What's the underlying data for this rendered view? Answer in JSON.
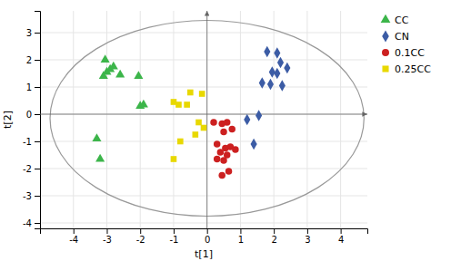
{
  "chart_data": {
    "type": "scatter",
    "title": "",
    "xlabel": "t[1]",
    "ylabel": "t[2]",
    "xlim": [
      -5,
      4.8
    ],
    "ylim": [
      -4.2,
      3.8
    ],
    "xticks": [
      -4,
      -3,
      -2,
      -1,
      0,
      1,
      2,
      3,
      4
    ],
    "yticks": [
      -4,
      -3,
      -2,
      -1,
      0,
      1,
      2,
      3
    ],
    "grid": true,
    "legend": "right",
    "ellipse": {
      "center": [
        0.0,
        -0.15
      ],
      "width": 9.4,
      "height": 7.2
    },
    "series": [
      {
        "name": "CC",
        "color": "#3cb54a",
        "marker": "triangle",
        "x": [
          -3.0,
          -2.9,
          -3.05,
          -2.8,
          -3.1,
          -2.6,
          -2.05,
          -2.0,
          -1.9,
          -3.3,
          -3.2
        ],
        "y": [
          1.55,
          1.65,
          2.0,
          1.75,
          1.4,
          1.45,
          1.4,
          0.3,
          0.35,
          -0.9,
          -1.65
        ]
      },
      {
        "name": "CN",
        "color": "#3c5ca5",
        "marker": "diamond",
        "x": [
          1.8,
          2.1,
          2.2,
          2.4,
          1.95,
          2.1,
          1.65,
          1.9,
          2.25,
          1.55,
          1.2,
          1.4
        ],
        "y": [
          2.3,
          2.25,
          1.9,
          1.7,
          1.55,
          1.5,
          1.15,
          1.1,
          1.05,
          -0.05,
          -0.2,
          -1.1
        ]
      },
      {
        "name": "0.1CC",
        "color": "#cc2020",
        "marker": "circle",
        "x": [
          0.2,
          0.45,
          0.6,
          0.75,
          0.5,
          0.3,
          0.7,
          0.55,
          0.85,
          0.4,
          0.6,
          0.3,
          0.5,
          0.65,
          0.45
        ],
        "y": [
          -0.3,
          -0.35,
          -0.3,
          -0.55,
          -0.65,
          -1.1,
          -1.2,
          -1.25,
          -1.3,
          -1.4,
          -1.5,
          -1.65,
          -1.7,
          -2.1,
          -2.25
        ]
      },
      {
        "name": "0.25CC",
        "color": "#e8d800",
        "marker": "square",
        "x": [
          -1.0,
          -0.85,
          -0.6,
          -0.5,
          -0.15,
          -0.25,
          -0.1,
          -0.35,
          -0.8,
          -1.0
        ],
        "y": [
          0.45,
          0.35,
          0.35,
          0.8,
          0.75,
          -0.3,
          -0.5,
          -0.75,
          -1.0,
          -1.65
        ]
      }
    ]
  }
}
